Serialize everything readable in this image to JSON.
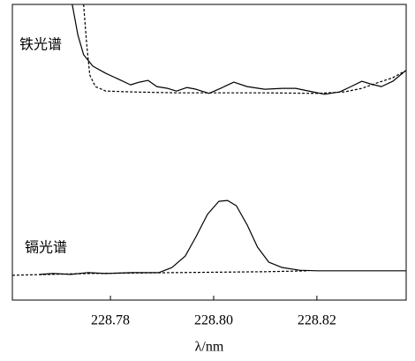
{
  "chart_data": {
    "type": "line",
    "xlabel": "λ/nm",
    "xlim": [
      228.761,
      228.8373
    ],
    "ylim": [
      0,
      100
    ],
    "xticks": [
      {
        "value": 228.78,
        "label": "228.78"
      },
      {
        "value": 228.8,
        "label": "228.80"
      },
      {
        "value": 228.82,
        "label": "228.82"
      }
    ],
    "annotations": [
      "铁光谱",
      "镉光谱"
    ],
    "series": [
      {
        "color": "#000000",
        "dash": false,
        "x": [
          228.7726,
          228.7737,
          228.7748,
          228.7766,
          228.7791,
          228.7817,
          228.7839,
          228.7856,
          228.7873,
          228.789,
          228.7911,
          228.7928,
          228.7948,
          228.7966,
          228.7991,
          228.8013,
          228.8039,
          228.8065,
          228.8099,
          228.8133,
          228.8159,
          228.8184,
          228.8215,
          228.8244,
          228.8266,
          228.8287,
          228.8304,
          228.8325,
          228.8347,
          228.8372
        ],
        "values": [
          100,
          89.6,
          83.0,
          79.1,
          76.7,
          74.6,
          72.8,
          73.7,
          74.3,
          72.2,
          71.6,
          70.7,
          71.9,
          71.3,
          69.9,
          71.6,
          73.7,
          72.2,
          71.3,
          71.6,
          71.6,
          70.7,
          69.6,
          70.4,
          72.2,
          74.0,
          73.1,
          72.2,
          74.0,
          77.6
        ]
      },
      {
        "color": "#000000",
        "dash": true,
        "x": [
          228.7748,
          228.7754,
          228.776,
          228.7771,
          228.7791,
          228.7842,
          228.7928,
          228.8099,
          228.8201,
          228.8253,
          228.8287,
          228.8321,
          228.8347,
          228.8372
        ],
        "values": [
          100,
          86.6,
          76.1,
          72.2,
          70.7,
          70.4,
          70.1,
          70.1,
          69.9,
          70.4,
          71.6,
          73.7,
          75.2,
          77.6
        ]
      },
      {
        "color": "#000000",
        "dash": false,
        "x": [
          228.7663,
          228.7689,
          228.7723,
          228.7757,
          228.7791,
          228.7842,
          228.7894,
          228.7919,
          228.7945,
          228.7966,
          228.7988,
          228.801,
          228.8027,
          228.8044,
          228.8065,
          228.8085,
          228.8107,
          228.8133,
          228.8167,
          228.8201,
          228.827,
          228.8372
        ],
        "values": [
          8.7,
          9.0,
          8.7,
          9.3,
          9.0,
          9.3,
          9.3,
          11.0,
          14.9,
          21.5,
          29.0,
          33.4,
          33.7,
          31.9,
          25.4,
          17.9,
          12.8,
          11.0,
          10.1,
          9.9,
          9.9,
          9.9
        ]
      },
      {
        "color": "#000000",
        "dash": true,
        "x": [
          228.761,
          228.7757,
          228.7928,
          228.8099,
          228.8184
        ],
        "values": [
          8.4,
          9.0,
          9.3,
          9.6,
          9.9
        ]
      }
    ]
  }
}
